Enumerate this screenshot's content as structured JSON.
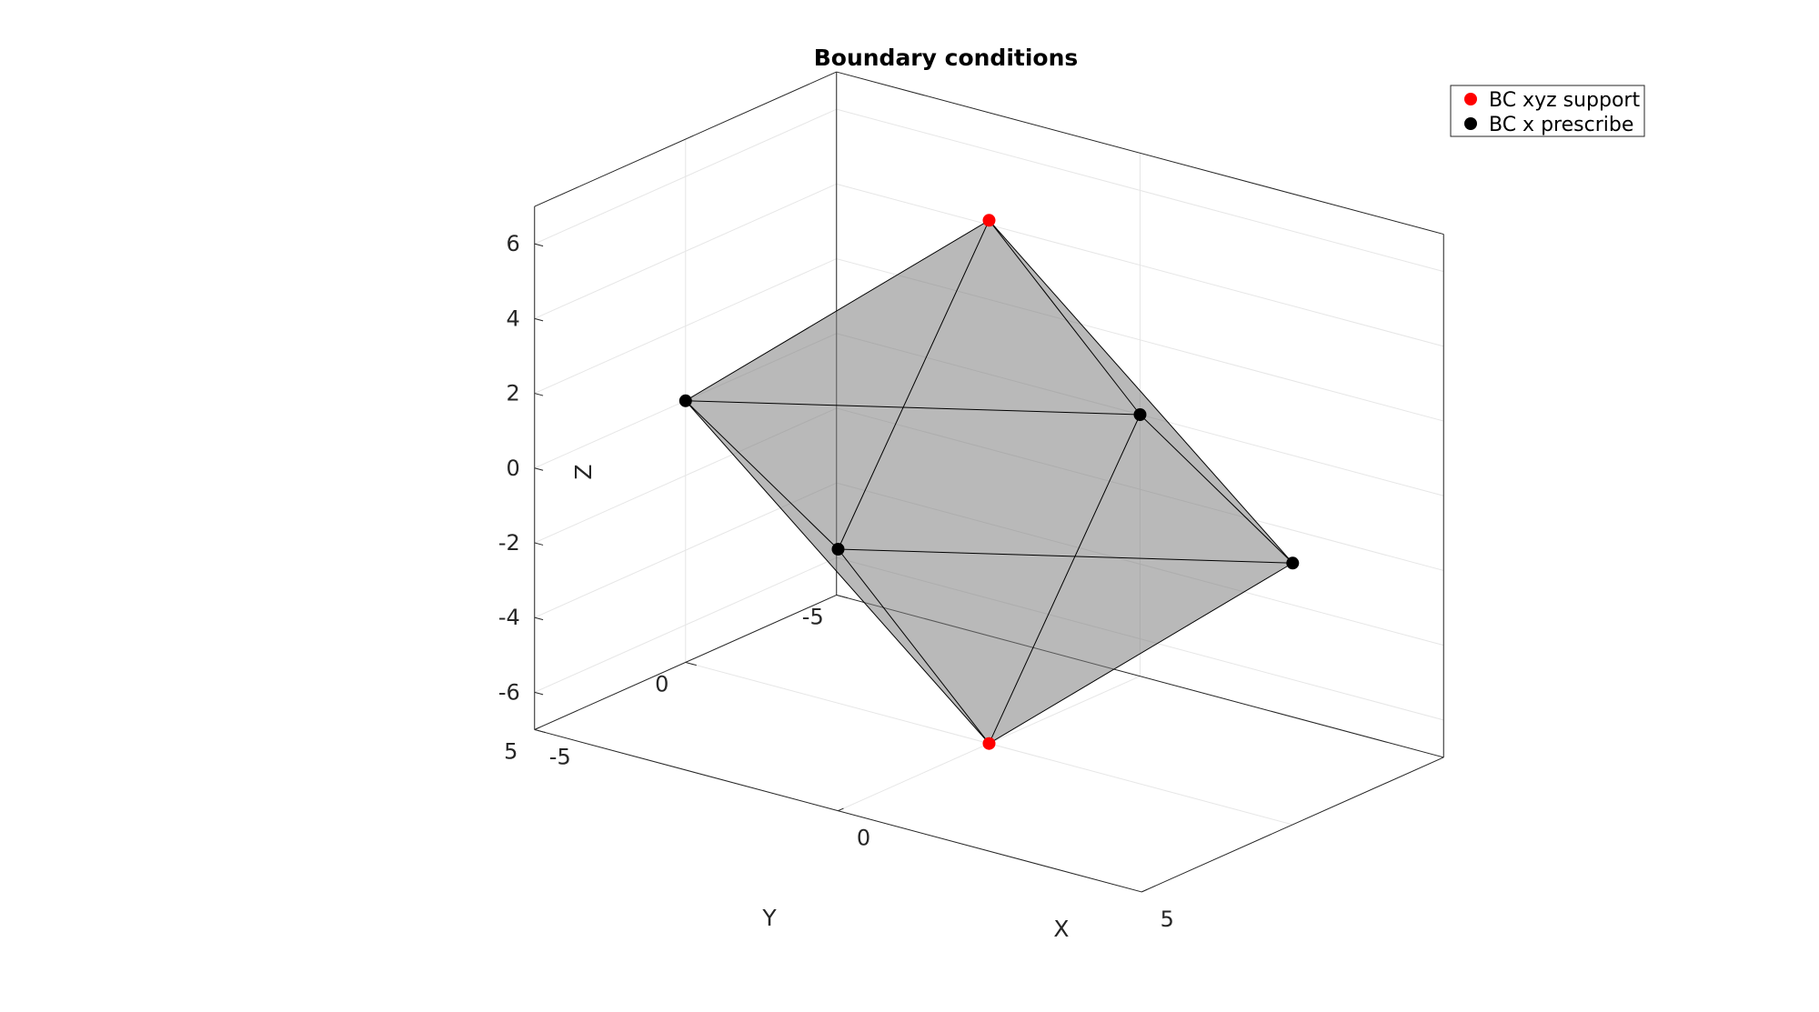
{
  "chart_data": {
    "type": "scatter",
    "subtype": "3d-surface-with-markers",
    "title": "Boundary conditions",
    "xlabel": "X",
    "ylabel": "Y",
    "zlabel": "Z",
    "xlim": [
      -5,
      5
    ],
    "ylim": [
      -5,
      5
    ],
    "zlim": [
      -7,
      7
    ],
    "xticks": [
      "-5",
      "0",
      "5"
    ],
    "yticks": [
      "-5",
      "0",
      "5"
    ],
    "zticks": [
      "-6",
      "-4",
      "-2",
      "0",
      "2",
      "4",
      "6"
    ],
    "grid": true,
    "legend_position": "top-right",
    "mesh": {
      "shape": "octahedron",
      "face_color": "#808080",
      "face_alpha": 0.6,
      "edge_color": "#000000",
      "vertices": [
        {
          "x": 5,
          "y": 0,
          "z": 0
        },
        {
          "x": -5,
          "y": 0,
          "z": 0
        },
        {
          "x": 0,
          "y": 5,
          "z": 0
        },
        {
          "x": 0,
          "y": -5,
          "z": 0
        },
        {
          "x": 0,
          "y": 0,
          "z": 7
        },
        {
          "x": 0,
          "y": 0,
          "z": -7
        }
      ]
    },
    "series": [
      {
        "name": "BC xyz support",
        "color": "#ff0000",
        "points": [
          {
            "x": 0,
            "y": 0,
            "z": 7
          },
          {
            "x": 0,
            "y": 0,
            "z": -7
          }
        ]
      },
      {
        "name": "BC x prescribe",
        "color": "#000000",
        "points": [
          {
            "x": 5,
            "y": 0,
            "z": 0
          },
          {
            "x": -5,
            "y": 0,
            "z": 0
          },
          {
            "x": 0,
            "y": 5,
            "z": 0
          },
          {
            "x": 0,
            "y": -5,
            "z": 0
          }
        ]
      }
    ]
  }
}
